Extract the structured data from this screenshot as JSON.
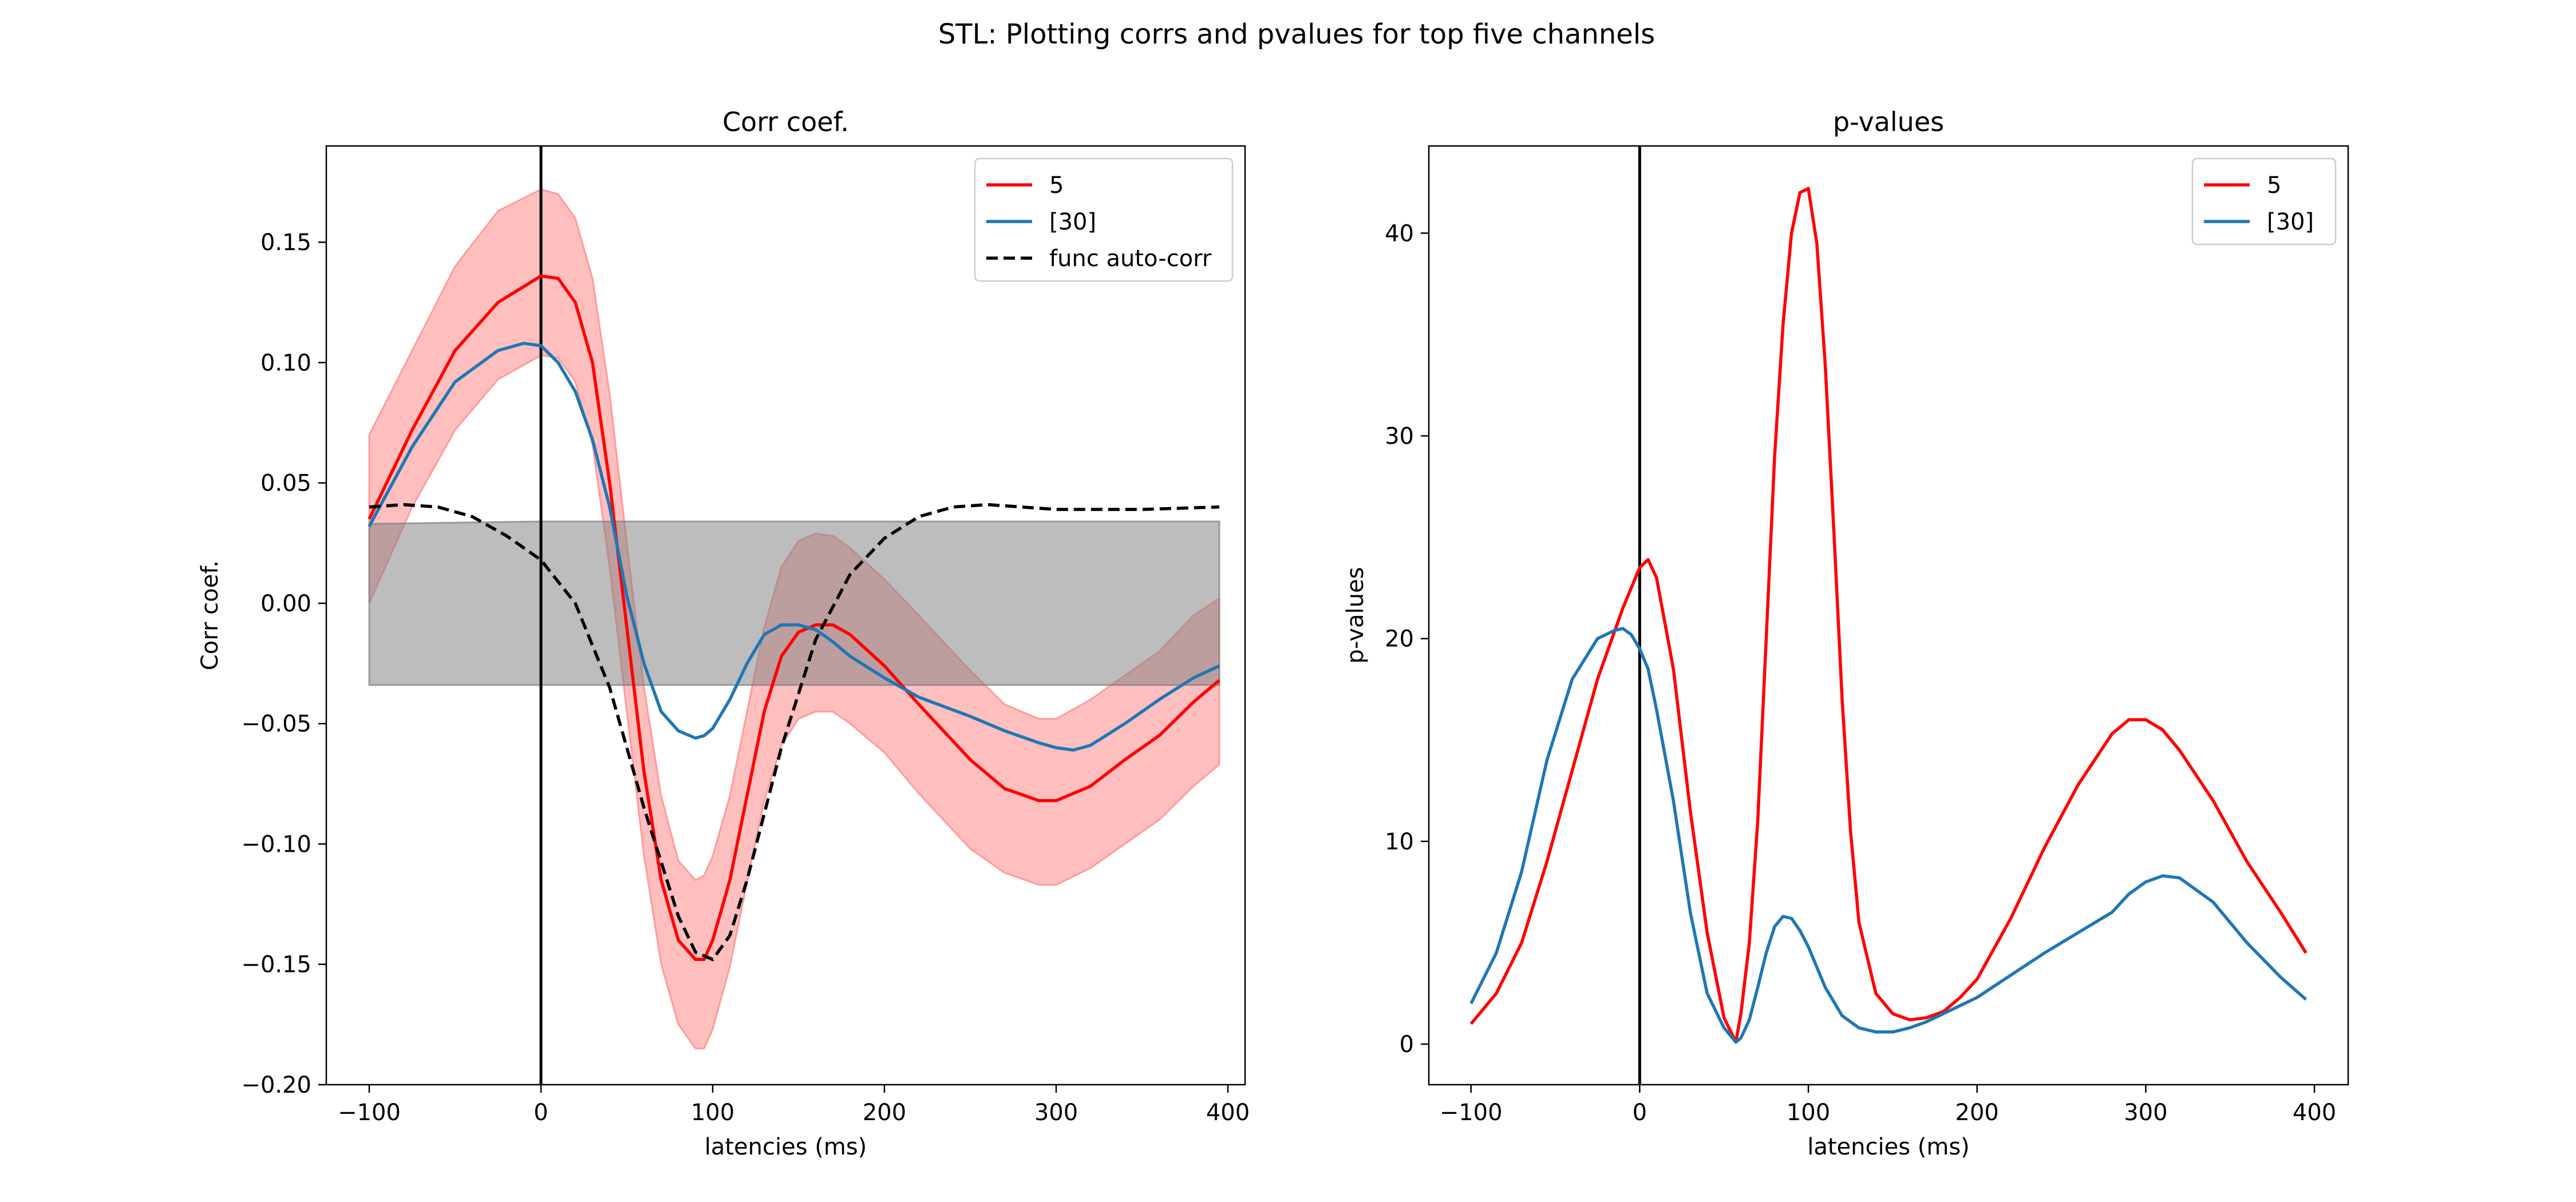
{
  "figure": {
    "suptitle": "STL: Plotting corrs and pvalues for top five channels"
  },
  "chart_data": [
    {
      "type": "line",
      "title": "Corr coef.",
      "xlabel": "latencies (ms)",
      "ylabel": "Corr coef.",
      "xlim": [
        -125,
        410
      ],
      "ylim": [
        -0.2,
        0.19
      ],
      "xticks": [
        -100,
        0,
        100,
        200,
        300,
        400
      ],
      "yticks": [
        -0.2,
        -0.15,
        -0.1,
        -0.05,
        0.0,
        0.05,
        0.1,
        0.15
      ],
      "xtick_labels": [
        "−100",
        "0",
        "100",
        "200",
        "300",
        "400"
      ],
      "ytick_labels": [
        "−0.20",
        "−0.15",
        "−0.10",
        "−0.05",
        "0.00",
        "0.05",
        "0.10",
        "0.15"
      ],
      "vline_x": 0,
      "legend_position": "upper right",
      "series": [
        {
          "name": "5",
          "color": "#ff0000",
          "style": "solid",
          "in_legend": true,
          "x": [
            -100,
            -75,
            -50,
            -25,
            0,
            10,
            20,
            30,
            40,
            50,
            60,
            70,
            80,
            90,
            95,
            100,
            110,
            120,
            130,
            140,
            150,
            160,
            170,
            180,
            200,
            220,
            250,
            270,
            290,
            300,
            320,
            340,
            360,
            380,
            395
          ],
          "y": [
            0.035,
            0.072,
            0.105,
            0.125,
            0.136,
            0.135,
            0.125,
            0.1,
            0.05,
            -0.01,
            -0.07,
            -0.115,
            -0.14,
            -0.148,
            -0.148,
            -0.14,
            -0.115,
            -0.08,
            -0.045,
            -0.022,
            -0.012,
            -0.009,
            -0.009,
            -0.013,
            -0.026,
            -0.042,
            -0.065,
            -0.077,
            -0.082,
            -0.082,
            -0.076,
            -0.065,
            -0.055,
            -0.041,
            -0.032
          ]
        },
        {
          "name": "[30]",
          "color": "#1f77b4",
          "style": "solid",
          "in_legend": true,
          "x": [
            -100,
            -75,
            -50,
            -25,
            -10,
            0,
            10,
            20,
            30,
            40,
            50,
            60,
            70,
            80,
            90,
            95,
            100,
            110,
            120,
            130,
            140,
            150,
            160,
            170,
            180,
            200,
            220,
            250,
            270,
            290,
            300,
            310,
            320,
            340,
            360,
            380,
            395
          ],
          "y": [
            0.032,
            0.065,
            0.092,
            0.105,
            0.108,
            0.107,
            0.1,
            0.088,
            0.068,
            0.04,
            0.003,
            -0.025,
            -0.045,
            -0.053,
            -0.056,
            -0.055,
            -0.052,
            -0.04,
            -0.025,
            -0.013,
            -0.009,
            -0.009,
            -0.011,
            -0.016,
            -0.022,
            -0.031,
            -0.039,
            -0.047,
            -0.053,
            -0.058,
            -0.06,
            -0.061,
            -0.059,
            -0.05,
            -0.04,
            -0.031,
            -0.026
          ]
        },
        {
          "name": "func auto-corr",
          "color": "#000000",
          "style": "dashed",
          "in_legend": true,
          "x": [
            -100,
            -80,
            -60,
            -40,
            -20,
            0,
            20,
            40,
            60,
            80,
            90,
            100,
            110,
            120,
            140,
            160,
            180,
            200,
            220,
            240,
            260,
            280,
            300,
            350,
            395
          ],
          "y": [
            0.04,
            0.041,
            0.04,
            0.036,
            0.028,
            0.018,
            0.0,
            -0.035,
            -0.085,
            -0.13,
            -0.145,
            -0.148,
            -0.138,
            -0.115,
            -0.06,
            -0.015,
            0.012,
            0.027,
            0.036,
            0.04,
            0.041,
            0.04,
            0.039,
            0.039,
            0.04
          ]
        }
      ],
      "bands": [
        {
          "color": "#ff0000",
          "opacity": 0.25,
          "edge_color": "#ff8080",
          "x": [
            -100,
            -75,
            -50,
            -25,
            0,
            10,
            20,
            30,
            40,
            50,
            60,
            70,
            80,
            90,
            95,
            100,
            110,
            120,
            130,
            140,
            150,
            160,
            170,
            180,
            200,
            220,
            250,
            270,
            290,
            300,
            320,
            340,
            360,
            380,
            395
          ],
          "upper": [
            0.07,
            0.105,
            0.14,
            0.163,
            0.172,
            0.17,
            0.16,
            0.135,
            0.087,
            0.025,
            -0.035,
            -0.08,
            -0.107,
            -0.115,
            -0.113,
            -0.105,
            -0.08,
            -0.045,
            -0.01,
            0.015,
            0.026,
            0.029,
            0.028,
            0.023,
            0.01,
            -0.005,
            -0.028,
            -0.042,
            -0.048,
            -0.048,
            -0.04,
            -0.03,
            -0.02,
            -0.005,
            0.002
          ],
          "lower": [
            0.0,
            0.04,
            0.072,
            0.093,
            0.103,
            0.102,
            0.092,
            0.066,
            0.015,
            -0.045,
            -0.105,
            -0.15,
            -0.175,
            -0.185,
            -0.185,
            -0.177,
            -0.151,
            -0.116,
            -0.082,
            -0.059,
            -0.048,
            -0.045,
            -0.045,
            -0.05,
            -0.062,
            -0.079,
            -0.102,
            -0.112,
            -0.117,
            -0.117,
            -0.11,
            -0.1,
            -0.09,
            -0.076,
            -0.067
          ]
        },
        {
          "color": "#808080",
          "opacity": 0.52,
          "edge_color": "#808080",
          "x": [
            -100,
            0,
            100,
            200,
            300,
            395
          ],
          "upper": [
            0.033,
            0.034,
            0.034,
            0.034,
            0.034,
            0.034
          ],
          "lower": [
            -0.034,
            -0.034,
            -0.034,
            -0.034,
            -0.034,
            -0.034
          ]
        }
      ]
    },
    {
      "type": "line",
      "title": "p-values",
      "xlabel": "latencies (ms)",
      "ylabel": "p-values",
      "xlim": [
        -125,
        420
      ],
      "ylim": [
        -2,
        44.3
      ],
      "xticks": [
        -100,
        0,
        100,
        200,
        300,
        400
      ],
      "yticks": [
        0,
        10,
        20,
        30,
        40
      ],
      "xtick_labels": [
        "−100",
        "0",
        "100",
        "200",
        "300",
        "400"
      ],
      "ytick_labels": [
        "0",
        "10",
        "20",
        "30",
        "40"
      ],
      "vline_x": 0,
      "legend_position": "upper right",
      "series": [
        {
          "name": "5",
          "color": "#ff0000",
          "style": "solid",
          "in_legend": true,
          "x": [
            -100,
            -85,
            -70,
            -55,
            -40,
            -25,
            -10,
            0,
            5,
            10,
            20,
            30,
            40,
            50,
            57,
            60,
            65,
            70,
            75,
            80,
            85,
            90,
            95,
            100,
            105,
            110,
            115,
            120,
            125,
            130,
            140,
            150,
            160,
            170,
            180,
            190,
            200,
            220,
            240,
            260,
            280,
            290,
            300,
            310,
            320,
            340,
            360,
            380,
            395
          ],
          "y": [
            1.0,
            2.5,
            5.0,
            9.0,
            13.5,
            18.0,
            21.5,
            23.5,
            23.9,
            23.0,
            18.5,
            11.5,
            5.5,
            1.3,
            0.1,
            1.5,
            5.0,
            11.0,
            20.0,
            29.0,
            35.5,
            40.0,
            42.0,
            42.2,
            39.5,
            33.5,
            25.5,
            17.0,
            10.5,
            6.0,
            2.5,
            1.5,
            1.2,
            1.3,
            1.6,
            2.3,
            3.2,
            6.2,
            9.7,
            12.8,
            15.3,
            16.0,
            16.0,
            15.5,
            14.5,
            12.0,
            9.0,
            6.5,
            4.5
          ]
        },
        {
          "name": "[30]",
          "color": "#1f77b4",
          "style": "solid",
          "in_legend": true,
          "x": [
            -100,
            -85,
            -70,
            -55,
            -40,
            -25,
            -15,
            -10,
            -5,
            0,
            5,
            10,
            20,
            30,
            40,
            50,
            57,
            60,
            65,
            70,
            75,
            80,
            85,
            90,
            95,
            100,
            110,
            120,
            130,
            140,
            150,
            160,
            170,
            180,
            200,
            220,
            240,
            260,
            280,
            290,
            300,
            310,
            320,
            340,
            360,
            380,
            395
          ],
          "y": [
            2.0,
            4.5,
            8.5,
            14.0,
            18.0,
            20.0,
            20.4,
            20.5,
            20.2,
            19.5,
            18.5,
            16.5,
            12.0,
            6.5,
            2.5,
            0.8,
            0.1,
            0.3,
            1.2,
            2.8,
            4.5,
            5.8,
            6.3,
            6.2,
            5.6,
            4.8,
            2.8,
            1.4,
            0.8,
            0.6,
            0.6,
            0.8,
            1.1,
            1.5,
            2.3,
            3.4,
            4.5,
            5.5,
            6.5,
            7.4,
            8.0,
            8.3,
            8.2,
            7.0,
            5.0,
            3.3,
            2.2
          ]
        }
      ],
      "bands": []
    }
  ]
}
